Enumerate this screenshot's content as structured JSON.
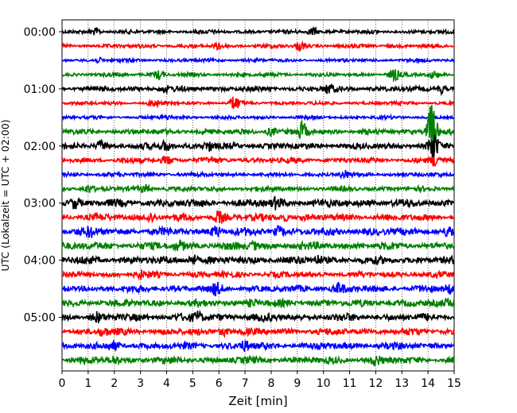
{
  "chart_data": {
    "type": "line",
    "title": "",
    "xlabel": "Zeit  [min]",
    "ylabel": "UTC (Lokalzeit = UTC + 02:00)",
    "xlim": [
      0,
      15
    ],
    "x_ticks": [
      "0",
      "1",
      "2",
      "3",
      "4",
      "5",
      "6",
      "7",
      "8",
      "9",
      "10",
      "11",
      "12",
      "13",
      "14",
      "15"
    ],
    "y_ticks": [
      "00:00",
      "01:00",
      "02:00",
      "03:00",
      "04:00",
      "05:00"
    ],
    "trace_interval_min": 15,
    "grid": "vertical dotted",
    "colors": [
      "#000000",
      "#ff0000",
      "#0000ff",
      "#008000"
    ],
    "series": [
      {
        "start": "00:00",
        "color": "#000000",
        "amplitude": 0.25,
        "bursts": [
          [
            1.3,
            0.5
          ],
          [
            9.6,
            0.6
          ]
        ]
      },
      {
        "start": "00:15",
        "color": "#ff0000",
        "amplitude": 0.25,
        "bursts": [
          [
            6.0,
            0.5
          ],
          [
            9.1,
            0.6
          ]
        ]
      },
      {
        "start": "00:30",
        "color": "#0000ff",
        "amplitude": 0.22,
        "bursts": [
          [
            1.4,
            0.3
          ]
        ]
      },
      {
        "start": "00:45",
        "color": "#008000",
        "amplitude": 0.25,
        "bursts": [
          [
            3.7,
            0.6
          ],
          [
            12.7,
            0.8
          ],
          [
            14.2,
            0.5
          ]
        ]
      },
      {
        "start": "01:00",
        "color": "#000000",
        "amplitude": 0.35,
        "bursts": [
          [
            3.9,
            0.4
          ],
          [
            10.2,
            0.6
          ],
          [
            14.5,
            0.6
          ]
        ]
      },
      {
        "start": "01:15",
        "color": "#ff0000",
        "amplitude": 0.22,
        "bursts": [
          [
            3.5,
            0.5
          ],
          [
            6.6,
            1.0
          ]
        ]
      },
      {
        "start": "01:30",
        "color": "#0000ff",
        "amplitude": 0.22,
        "bursts": [
          [
            4.0,
            0.3
          ]
        ]
      },
      {
        "start": "01:45",
        "color": "#008000",
        "amplitude": 0.35,
        "bursts": [
          [
            8.0,
            0.6
          ],
          [
            9.2,
            1.3
          ],
          [
            14.15,
            4.5
          ]
        ]
      },
      {
        "start": "02:00",
        "color": "#000000",
        "amplitude": 0.4,
        "bursts": [
          [
            1.5,
            0.6
          ],
          [
            4.0,
            0.8
          ],
          [
            5.6,
            0.6
          ],
          [
            14.2,
            2.0
          ]
        ]
      },
      {
        "start": "02:15",
        "color": "#ff0000",
        "amplitude": 0.35,
        "bursts": [
          [
            4.0,
            0.5
          ],
          [
            14.3,
            0.8
          ]
        ]
      },
      {
        "start": "02:30",
        "color": "#0000ff",
        "amplitude": 0.28,
        "bursts": [
          [
            10.8,
            0.5
          ]
        ]
      },
      {
        "start": "02:45",
        "color": "#008000",
        "amplitude": 0.32,
        "bursts": [
          [
            1.0,
            0.5
          ],
          [
            3.2,
            0.5
          ]
        ]
      },
      {
        "start": "03:00",
        "color": "#000000",
        "amplitude": 0.5,
        "bursts": [
          [
            0.5,
            0.6
          ],
          [
            8.2,
            0.6
          ]
        ]
      },
      {
        "start": "03:15",
        "color": "#ff0000",
        "amplitude": 0.45,
        "bursts": [
          [
            3.4,
            0.6
          ],
          [
            6.0,
            0.8
          ],
          [
            8.5,
            0.5
          ]
        ]
      },
      {
        "start": "03:30",
        "color": "#0000ff",
        "amplitude": 0.5,
        "bursts": [
          [
            1.1,
            0.5
          ],
          [
            5.9,
            0.7
          ],
          [
            8.3,
            0.6
          ],
          [
            14.8,
            0.5
          ]
        ]
      },
      {
        "start": "03:45",
        "color": "#008000",
        "amplitude": 0.5,
        "bursts": [
          [
            4.5,
            0.5
          ],
          [
            7.3,
            0.5
          ]
        ]
      },
      {
        "start": "04:00",
        "color": "#000000",
        "amplitude": 0.5,
        "bursts": [
          [
            5.0,
            0.8
          ],
          [
            9.8,
            0.5
          ]
        ]
      },
      {
        "start": "04:15",
        "color": "#ff0000",
        "amplitude": 0.4,
        "bursts": [
          [
            3.0,
            0.4
          ]
        ]
      },
      {
        "start": "04:30",
        "color": "#0000ff",
        "amplitude": 0.45,
        "bursts": [
          [
            5.9,
            0.6
          ],
          [
            10.6,
            0.6
          ],
          [
            14.8,
            0.5
          ]
        ]
      },
      {
        "start": "04:45",
        "color": "#008000",
        "amplitude": 0.45,
        "bursts": [
          [
            7.3,
            0.5
          ],
          [
            14.8,
            0.4
          ]
        ]
      },
      {
        "start": "05:00",
        "color": "#000000",
        "amplitude": 0.5,
        "bursts": [
          [
            1.3,
            0.5
          ],
          [
            5.2,
            0.6
          ]
        ]
      },
      {
        "start": "05:15",
        "color": "#ff0000",
        "amplitude": 0.45,
        "bursts": [
          [
            1.6,
            0.5
          ],
          [
            6.2,
            0.6
          ]
        ]
      },
      {
        "start": "05:30",
        "color": "#0000ff",
        "amplitude": 0.45,
        "bursts": [
          [
            2.0,
            0.4
          ],
          [
            7.0,
            0.6
          ]
        ]
      },
      {
        "start": "05:45",
        "color": "#008000",
        "amplitude": 0.45,
        "bursts": [
          [
            2.0,
            0.5
          ],
          [
            12.0,
            0.5
          ]
        ]
      }
    ]
  }
}
